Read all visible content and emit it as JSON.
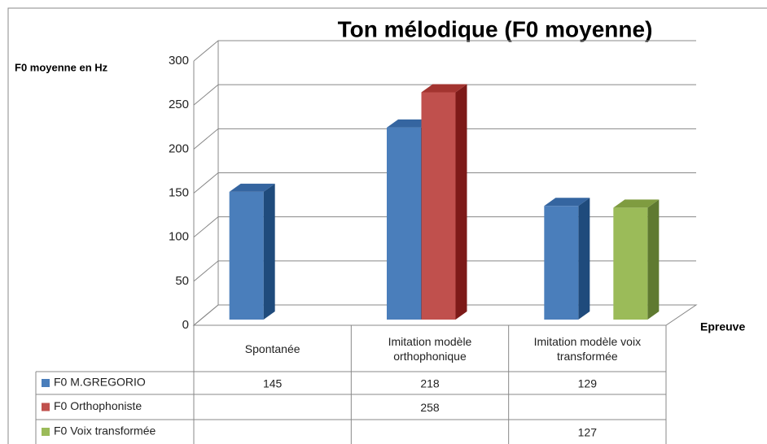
{
  "chart_data": {
    "type": "bar3d",
    "title": "Ton mélodique (F0 moyenne)",
    "y_label": "F0 moyenne en Hz",
    "x_label": "Epreuve",
    "categories": [
      "Spontanée",
      "Imitation modèle orthophonique",
      "Imitation modèle voix transformée"
    ],
    "series": [
      {
        "name": "F0 M.GREGORIO",
        "color": "#4a7ebb",
        "side": "#1f4b7c",
        "top": "#3565a0",
        "values": [
          145,
          218,
          129
        ]
      },
      {
        "name": "F0 Orthophoniste",
        "color": "#c0504d",
        "side": "#7d1a18",
        "top": "#a33430",
        "values": [
          null,
          258,
          null
        ]
      },
      {
        "name": "F0 Voix transformée",
        "color": "#9bbb59",
        "side": "#5f7a30",
        "top": "#7f9c40",
        "values": [
          null,
          null,
          127
        ]
      }
    ],
    "ylim": [
      0,
      300
    ],
    "yticks": [
      0,
      50,
      100,
      150,
      200,
      250,
      300
    ],
    "grid": true,
    "data_table": true
  }
}
